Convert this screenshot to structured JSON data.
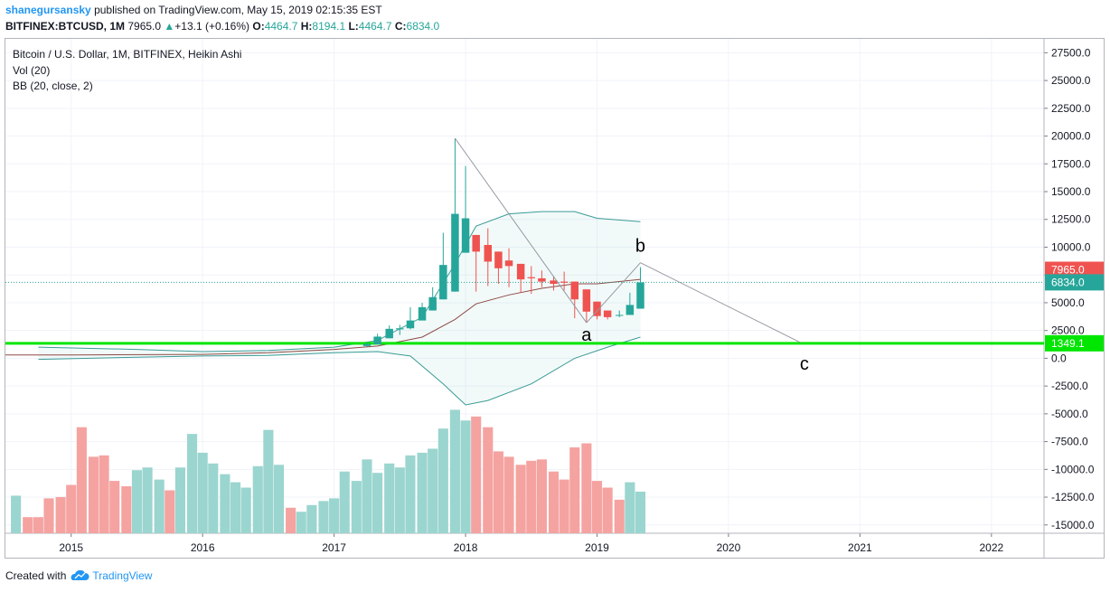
{
  "header": {
    "username": "shanegursansky",
    "published_text": "published on TradingView.com, May 15, 2019 02:15:35 EST",
    "symbol_line": "BITFINEX:BTCUSD, 1M",
    "price": "7965.0",
    "change": "+13.1 (+0.16%)",
    "o_label": "O:",
    "o_value": "4464.7",
    "h_label": "H:",
    "h_value": "8194.1",
    "l_label": "L:",
    "l_value": "4464.7",
    "c_label": "C:",
    "c_value": "6834.0"
  },
  "legend": {
    "title": "Bitcoin / U.S. Dollar, 1M, BITFINEX, Heikin Ashi",
    "vol": "Vol (20)",
    "bb": "BB (20, close, 2)"
  },
  "footer": {
    "created_with": "Created with",
    "brand": "TradingView"
  },
  "colors": {
    "up": "#26a69a",
    "down": "#ef5350",
    "vol_up": "#9bd5cf",
    "vol_down": "#f4a3a1",
    "support": "#00e600",
    "bb_mid": "#8d4b46",
    "bb_band": "#3a9b96",
    "price_label_last": "#ef5350",
    "price_label_close": "#26a69a"
  },
  "chart_data": {
    "type": "candlestick",
    "y_axis": {
      "ticks": [
        "27500.0",
        "25000.0",
        "22500.0",
        "20000.0",
        "17500.0",
        "15000.0",
        "12500.0",
        "10000.0",
        "7500.0",
        "5000.0",
        "2500.0",
        "0.0",
        "-2500.0",
        "-5000.0",
        "-7500.0",
        "-10000.0",
        "-12500.0",
        "-15000.0"
      ],
      "tick_values": [
        27500,
        25000,
        22500,
        20000,
        17500,
        15000,
        12500,
        10000,
        7500,
        5000,
        2500,
        0,
        -2500,
        -5000,
        -7500,
        -10000,
        -12500,
        -15000
      ],
      "range": [
        -15750,
        28750
      ]
    },
    "x_axis": {
      "ticks": [
        "2015",
        "2016",
        "2017",
        "2018",
        "2019",
        "2020",
        "2021",
        "2022"
      ],
      "tick_values": [
        2015,
        2016,
        2017,
        2018,
        2019,
        2020,
        2021,
        2022
      ],
      "range": [
        2014.5,
        2022.4
      ]
    },
    "candles": [
      {
        "t": 2017.25,
        "o": 1100,
        "h": 1400,
        "l": 1050,
        "c": 1300
      },
      {
        "t": 2017.33,
        "o": 1250,
        "h": 2200,
        "l": 1250,
        "c": 1950
      },
      {
        "t": 2017.42,
        "o": 1800,
        "h": 2950,
        "l": 1800,
        "c": 2650
      },
      {
        "t": 2017.5,
        "o": 2600,
        "h": 3000,
        "l": 2100,
        "c": 2700
      },
      {
        "t": 2017.58,
        "o": 2700,
        "h": 4600,
        "l": 2600,
        "c": 3400
      },
      {
        "t": 2017.67,
        "o": 3400,
        "h": 5000,
        "l": 3400,
        "c": 4600
      },
      {
        "t": 2017.75,
        "o": 4300,
        "h": 6400,
        "l": 4300,
        "c": 5500
      },
      {
        "t": 2017.83,
        "o": 5300,
        "h": 11300,
        "l": 5300,
        "c": 8400
      },
      {
        "t": 2017.92,
        "o": 6000,
        "h": 19800,
        "l": 6000,
        "c": 13000
      },
      {
        "t": 2018.0,
        "o": 9500,
        "h": 17300,
        "l": 9500,
        "c": 12600
      },
      {
        "t": 2018.08,
        "o": 11100,
        "h": 11100,
        "l": 6000,
        "c": 9600
      },
      {
        "t": 2018.17,
        "o": 10200,
        "h": 11700,
        "l": 6500,
        "c": 8700
      },
      {
        "t": 2018.25,
        "o": 9600,
        "h": 9600,
        "l": 6700,
        "c": 8100
      },
      {
        "t": 2018.33,
        "o": 8800,
        "h": 9900,
        "l": 6400,
        "c": 8300
      },
      {
        "t": 2018.42,
        "o": 8500,
        "h": 8500,
        "l": 5900,
        "c": 7100
      },
      {
        "t": 2018.5,
        "o": 7300,
        "h": 8300,
        "l": 5800,
        "c": 7200
      },
      {
        "t": 2018.58,
        "o": 7200,
        "h": 7900,
        "l": 6400,
        "c": 6900
      },
      {
        "t": 2018.67,
        "o": 7000,
        "h": 7400,
        "l": 6100,
        "c": 6700
      },
      {
        "t": 2018.75,
        "o": 6900,
        "h": 7800,
        "l": 6100,
        "c": 6800
      },
      {
        "t": 2018.83,
        "o": 6900,
        "h": 6900,
        "l": 3600,
        "c": 5300
      },
      {
        "t": 2018.92,
        "o": 6200,
        "h": 6200,
        "l": 3200,
        "c": 4200
      },
      {
        "t": 2019.0,
        "o": 5100,
        "h": 5100,
        "l": 3500,
        "c": 3800
      },
      {
        "t": 2019.08,
        "o": 4300,
        "h": 4300,
        "l": 3500,
        "c": 3700
      },
      {
        "t": 2019.17,
        "o": 3900,
        "h": 4300,
        "l": 3700,
        "c": 3900
      },
      {
        "t": 2019.25,
        "o": 3900,
        "h": 5900,
        "l": 3900,
        "c": 4800
      },
      {
        "t": 2019.33,
        "o": 4465,
        "h": 8194,
        "l": 4465,
        "c": 6834
      }
    ],
    "volume_heights": [
      {
        "t": 2014.58,
        "v": 0.28,
        "up": true
      },
      {
        "t": 2014.67,
        "v": 0.12,
        "up": false
      },
      {
        "t": 2014.75,
        "v": 0.12,
        "up": false
      },
      {
        "t": 2014.83,
        "v": 0.26,
        "up": false
      },
      {
        "t": 2014.92,
        "v": 0.27,
        "up": false
      },
      {
        "t": 2015.0,
        "v": 0.36,
        "up": false
      },
      {
        "t": 2015.08,
        "v": 0.79,
        "up": false
      },
      {
        "t": 2015.17,
        "v": 0.57,
        "up": false
      },
      {
        "t": 2015.25,
        "v": 0.58,
        "up": false
      },
      {
        "t": 2015.33,
        "v": 0.39,
        "up": false
      },
      {
        "t": 2015.42,
        "v": 0.35,
        "up": false
      },
      {
        "t": 2015.5,
        "v": 0.47,
        "up": true
      },
      {
        "t": 2015.58,
        "v": 0.49,
        "up": true
      },
      {
        "t": 2015.67,
        "v": 0.4,
        "up": true
      },
      {
        "t": 2015.75,
        "v": 0.32,
        "up": false
      },
      {
        "t": 2015.83,
        "v": 0.49,
        "up": true
      },
      {
        "t": 2015.92,
        "v": 0.74,
        "up": true
      },
      {
        "t": 2016.0,
        "v": 0.6,
        "up": true
      },
      {
        "t": 2016.08,
        "v": 0.52,
        "up": true
      },
      {
        "t": 2016.17,
        "v": 0.44,
        "up": true
      },
      {
        "t": 2016.25,
        "v": 0.38,
        "up": true
      },
      {
        "t": 2016.33,
        "v": 0.34,
        "up": true
      },
      {
        "t": 2016.42,
        "v": 0.5,
        "up": true
      },
      {
        "t": 2016.5,
        "v": 0.77,
        "up": true
      },
      {
        "t": 2016.58,
        "v": 0.51,
        "up": true
      },
      {
        "t": 2016.67,
        "v": 0.19,
        "up": false
      },
      {
        "t": 2016.75,
        "v": 0.16,
        "up": true
      },
      {
        "t": 2016.83,
        "v": 0.21,
        "up": true
      },
      {
        "t": 2016.92,
        "v": 0.24,
        "up": true
      },
      {
        "t": 2017.0,
        "v": 0.26,
        "up": true
      },
      {
        "t": 2017.08,
        "v": 0.46,
        "up": true
      },
      {
        "t": 2017.17,
        "v": 0.39,
        "up": true
      },
      {
        "t": 2017.25,
        "v": 0.55,
        "up": true
      },
      {
        "t": 2017.33,
        "v": 0.45,
        "up": true
      },
      {
        "t": 2017.42,
        "v": 0.52,
        "up": true
      },
      {
        "t": 2017.5,
        "v": 0.49,
        "up": true
      },
      {
        "t": 2017.58,
        "v": 0.58,
        "up": true
      },
      {
        "t": 2017.67,
        "v": 0.6,
        "up": true
      },
      {
        "t": 2017.75,
        "v": 0.63,
        "up": true
      },
      {
        "t": 2017.83,
        "v": 0.78,
        "up": true
      },
      {
        "t": 2017.92,
        "v": 0.92,
        "up": true
      },
      {
        "t": 2018.0,
        "v": 0.84,
        "up": true
      },
      {
        "t": 2018.08,
        "v": 0.87,
        "up": false
      },
      {
        "t": 2018.17,
        "v": 0.79,
        "up": false
      },
      {
        "t": 2018.25,
        "v": 0.61,
        "up": false
      },
      {
        "t": 2018.33,
        "v": 0.57,
        "up": false
      },
      {
        "t": 2018.42,
        "v": 0.51,
        "up": false
      },
      {
        "t": 2018.5,
        "v": 0.54,
        "up": false
      },
      {
        "t": 2018.58,
        "v": 0.55,
        "up": false
      },
      {
        "t": 2018.67,
        "v": 0.46,
        "up": false
      },
      {
        "t": 2018.75,
        "v": 0.4,
        "up": false
      },
      {
        "t": 2018.83,
        "v": 0.64,
        "up": false
      },
      {
        "t": 2018.92,
        "v": 0.67,
        "up": false
      },
      {
        "t": 2019.0,
        "v": 0.39,
        "up": false
      },
      {
        "t": 2019.08,
        "v": 0.34,
        "up": false
      },
      {
        "t": 2019.17,
        "v": 0.25,
        "up": false
      },
      {
        "t": 2019.25,
        "v": 0.38,
        "up": true
      },
      {
        "t": 2019.33,
        "v": 0.31,
        "up": true
      }
    ],
    "bb_mid": [
      {
        "t": 2014.5,
        "v": 300
      },
      {
        "t": 2015.0,
        "v": 300
      },
      {
        "t": 2016.0,
        "v": 350
      },
      {
        "t": 2016.5,
        "v": 500
      },
      {
        "t": 2017.0,
        "v": 800
      },
      {
        "t": 2017.33,
        "v": 1100
      },
      {
        "t": 2017.67,
        "v": 1900
      },
      {
        "t": 2017.92,
        "v": 3500
      },
      {
        "t": 2018.08,
        "v": 4900
      },
      {
        "t": 2018.33,
        "v": 5700
      },
      {
        "t": 2018.58,
        "v": 6300
      },
      {
        "t": 2018.83,
        "v": 6700
      },
      {
        "t": 2019.0,
        "v": 6700
      },
      {
        "t": 2019.33,
        "v": 7100
      }
    ],
    "bb_upper": [
      {
        "t": 2014.75,
        "v": 1000
      },
      {
        "t": 2015.5,
        "v": 800
      },
      {
        "t": 2016.0,
        "v": 600
      },
      {
        "t": 2016.5,
        "v": 700
      },
      {
        "t": 2017.0,
        "v": 1000
      },
      {
        "t": 2017.33,
        "v": 1600
      },
      {
        "t": 2017.67,
        "v": 3700
      },
      {
        "t": 2017.92,
        "v": 8500
      },
      {
        "t": 2018.08,
        "v": 11900
      },
      {
        "t": 2018.33,
        "v": 13000
      },
      {
        "t": 2018.58,
        "v": 13200
      },
      {
        "t": 2018.83,
        "v": 13200
      },
      {
        "t": 2019.0,
        "v": 12600
      },
      {
        "t": 2019.33,
        "v": 12300
      }
    ],
    "bb_lower": [
      {
        "t": 2014.75,
        "v": -100
      },
      {
        "t": 2015.5,
        "v": 100
      },
      {
        "t": 2016.0,
        "v": 200
      },
      {
        "t": 2016.5,
        "v": 250
      },
      {
        "t": 2017.0,
        "v": 500
      },
      {
        "t": 2017.33,
        "v": 600
      },
      {
        "t": 2017.58,
        "v": 200
      },
      {
        "t": 2017.83,
        "v": -2300
      },
      {
        "t": 2018.0,
        "v": -4200
      },
      {
        "t": 2018.17,
        "v": -3800
      },
      {
        "t": 2018.5,
        "v": -2300
      },
      {
        "t": 2018.83,
        "v": 0
      },
      {
        "t": 2019.08,
        "v": 1000
      },
      {
        "t": 2019.33,
        "v": 1900
      }
    ],
    "support_level": 1349.1,
    "support_label": "1349.1",
    "last_price_label": "7965.0",
    "close_price_label": "6834.0",
    "close_price": 6834,
    "last_price": 7965,
    "wave_points": [
      {
        "t": 2017.92,
        "v": 19800,
        "label": ""
      },
      {
        "t": 2018.92,
        "v": 3200,
        "label": "a"
      },
      {
        "t": 2019.33,
        "v": 8600,
        "label": "b"
      },
      {
        "t": 2020.55,
        "v": 1400,
        "label": "c"
      }
    ]
  }
}
